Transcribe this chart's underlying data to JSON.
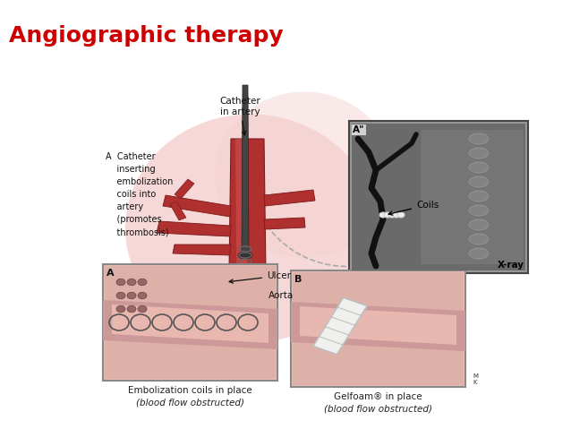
{
  "title": "Angiographic therapy",
  "title_color": "#cc0000",
  "title_fontsize": 18,
  "title_fontweight": "bold",
  "background_color": "#ffffff",
  "fig_width": 6.38,
  "fig_height": 4.79,
  "dpi": 100,
  "label_A_text": "A  Catheter\n    inserting\n    embolization\n    coils into\n    artery\n    (promotes\n    thrombosis)",
  "label_catheter_line1": "Catheter",
  "label_catheter_line2": "in artery",
  "label_ulcer": "Ulcer",
  "label_aorta": "Aorta",
  "label_coils": "Coils",
  "label_xray": "X-ray",
  "label_A2": "A\"",
  "label_boxA": "A",
  "label_boxB": "B",
  "caption_A_line1": "Embolization coils in place",
  "caption_A_line2": "(blood flow obstructed)",
  "caption_B_line1": "Gelfoam® in place",
  "caption_B_line2": "(blood flow obstructed)"
}
